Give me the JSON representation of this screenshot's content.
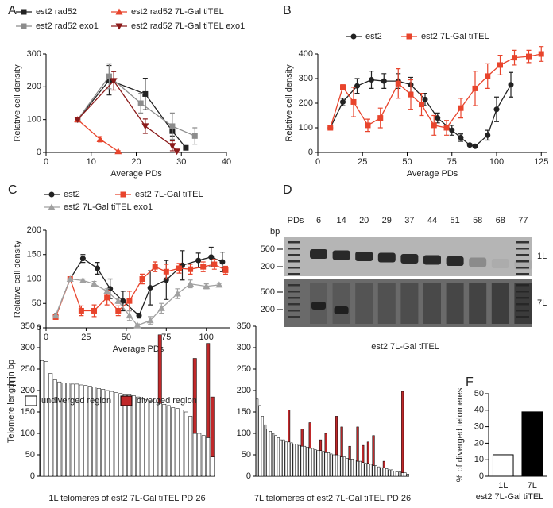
{
  "chart_data": [
    {
      "panel": "A",
      "type": "line",
      "xlabel": "Average PDs",
      "ylabel": "Relative cell density",
      "xlim": [
        0,
        40
      ],
      "xticks": [
        0,
        10,
        20,
        30,
        40
      ],
      "ylim": [
        0,
        300
      ],
      "yticks": [
        0,
        100,
        200,
        300
      ],
      "series": [
        {
          "name": "est2 rad52",
          "color": "#222222",
          "marker": "square",
          "x": [
            7,
            14,
            22,
            28,
            31
          ],
          "values": [
            100,
            220,
            178,
            65,
            14
          ],
          "errors": [
            0,
            45,
            48,
            15,
            3
          ]
        },
        {
          "name": "est2 rad52 exo1",
          "color": "#8c8c8c",
          "marker": "square",
          "x": [
            7,
            14,
            21,
            28,
            33
          ],
          "values": [
            100,
            232,
            150,
            80,
            50
          ],
          "errors": [
            0,
            38,
            30,
            40,
            25
          ]
        },
        {
          "name": "est2 rad52 7L-Gal tiTEL",
          "color": "#e8442c",
          "marker": "triangle",
          "x": [
            7,
            12,
            16
          ],
          "values": [
            100,
            40,
            3
          ],
          "errors": [
            0,
            8,
            2
          ]
        },
        {
          "name": "est2 rad52 7L-Gal tiTEL exo1",
          "color": "#8b1a1a",
          "marker": "triangle-down",
          "x": [
            7,
            15,
            22,
            28,
            29
          ],
          "values": [
            100,
            218,
            80,
            20,
            3
          ],
          "errors": [
            0,
            28,
            22,
            15,
            3
          ]
        }
      ]
    },
    {
      "panel": "B",
      "type": "line",
      "xlabel": "Average PDs",
      "ylabel": "Relative cell density",
      "xlim": [
        0,
        128
      ],
      "xticks": [
        0,
        25,
        50,
        75,
        100,
        125
      ],
      "ylim": [
        0,
        400
      ],
      "yticks": [
        0,
        100,
        200,
        300,
        400
      ],
      "series": [
        {
          "name": "est2",
          "color": "#222222",
          "marker": "circle",
          "x": [
            7,
            14,
            22,
            30,
            37,
            45,
            52,
            60,
            67,
            75,
            80,
            85,
            88,
            95,
            100,
            108
          ],
          "values": [
            100,
            205,
            270,
            295,
            290,
            290,
            275,
            215,
            140,
            90,
            60,
            30,
            25,
            70,
            175,
            275
          ],
          "errors": [
            0,
            15,
            30,
            35,
            30,
            30,
            30,
            25,
            20,
            20,
            15,
            5,
            5,
            20,
            50,
            50
          ]
        },
        {
          "name": "est2 7L-Gal tiTEL",
          "color": "#e8442c",
          "marker": "square",
          "x": [
            7,
            14,
            20,
            28,
            35,
            45,
            52,
            58,
            65,
            72,
            80,
            88,
            95,
            102,
            110,
            118,
            125
          ],
          "values": [
            100,
            265,
            205,
            110,
            140,
            280,
            235,
            195,
            110,
            100,
            180,
            260,
            310,
            355,
            385,
            390,
            400
          ],
          "errors": [
            0,
            10,
            60,
            25,
            40,
            60,
            60,
            45,
            40,
            30,
            40,
            70,
            50,
            40,
            30,
            25,
            30
          ]
        }
      ]
    },
    {
      "panel": "C",
      "type": "line",
      "xlabel": "Average PDs",
      "ylabel": "Relative cell density",
      "xlim": [
        0,
        115
      ],
      "xticks": [
        0,
        25,
        50,
        75,
        100
      ],
      "ylim": [
        0,
        200
      ],
      "yticks": [
        0,
        50,
        100,
        150,
        200
      ],
      "series": [
        {
          "name": "est2",
          "color": "#222222",
          "marker": "circle",
          "x": [
            6,
            15,
            23,
            32,
            40,
            48,
            58,
            65,
            75,
            85,
            95,
            103,
            110
          ],
          "values": [
            25,
            100,
            142,
            122,
            80,
            55,
            25,
            82,
            98,
            128,
            138,
            145,
            135
          ],
          "errors": [
            0,
            0,
            8,
            12,
            20,
            20,
            5,
            35,
            40,
            30,
            15,
            20,
            20
          ]
        },
        {
          "name": "est2 7L-Gal tiTEL",
          "color": "#e8442c",
          "marker": "square",
          "x": [
            6,
            15,
            22,
            30,
            38,
            45,
            52,
            60,
            68,
            75,
            83,
            90,
            98,
            105,
            112
          ],
          "values": [
            22,
            100,
            35,
            35,
            62,
            35,
            55,
            100,
            125,
            115,
            122,
            120,
            125,
            130,
            118
          ],
          "errors": [
            0,
            0,
            10,
            12,
            15,
            10,
            20,
            10,
            10,
            15,
            10,
            10,
            10,
            10,
            8
          ]
        },
        {
          "name": "est2 7L-Gal tiTEL exo1",
          "color": "#a0a0a0",
          "marker": "triangle",
          "x": [
            6,
            15,
            23,
            30,
            38,
            45,
            52,
            57,
            65,
            72,
            82,
            90,
            100,
            108
          ],
          "values": [
            25,
            100,
            97,
            90,
            75,
            55,
            25,
            5,
            15,
            40,
            70,
            90,
            85,
            88
          ],
          "errors": [
            0,
            0,
            3,
            5,
            5,
            5,
            10,
            3,
            8,
            10,
            10,
            8,
            5,
            3
          ]
        }
      ]
    },
    {
      "panel": "D",
      "type": "gel",
      "lane_label": "PDs",
      "lanes": [
        6,
        14,
        20,
        29,
        37,
        44,
        51,
        58,
        68,
        77
      ],
      "size_unit": "bp",
      "size_markers": [
        500,
        200
      ],
      "blots": [
        "1L",
        "7L"
      ],
      "caption": "est2 7L-Gal tiTEL"
    },
    {
      "panel": "E",
      "type": "stacked_bar",
      "ylabel": "Telomere length in bp",
      "xlabel": "1L telomeres of est2 7L-Gal tiTEL PD 26",
      "ylim": [
        0,
        350
      ],
      "yticks": [
        0,
        50,
        100,
        150,
        200,
        250,
        300,
        350
      ],
      "series": [
        {
          "name": "undiverged region",
          "color": "#ffffff",
          "values": [
            270,
            268,
            240,
            225,
            220,
            218,
            218,
            215,
            215,
            213,
            212,
            210,
            208,
            205,
            203,
            200,
            198,
            195,
            193,
            190,
            190,
            188,
            185,
            180,
            178,
            175,
            172,
            170,
            168,
            165,
            160,
            158,
            155,
            150,
            140,
            100,
            100,
            95,
            90,
            45
          ]
        },
        {
          "name": "diverged region",
          "color": "#c0282a",
          "values": [
            0,
            0,
            0,
            0,
            0,
            0,
            0,
            0,
            0,
            0,
            0,
            0,
            0,
            0,
            0,
            0,
            0,
            0,
            0,
            0,
            0,
            0,
            0,
            0,
            0,
            0,
            0,
            160,
            0,
            0,
            0,
            0,
            0,
            0,
            0,
            175,
            0,
            0,
            220,
            140
          ]
        }
      ]
    },
    {
      "type": "stacked_bar",
      "xlabel": "7L telomeres of est2 7L-Gal tiTEL PD 26",
      "ylim": [
        0,
        350
      ],
      "yticks": [
        0,
        50,
        100,
        150,
        200,
        250,
        300,
        350
      ],
      "series": [
        {
          "color": "#ffffff",
          "values": [
            180,
            165,
            140,
            120,
            110,
            105,
            100,
            95,
            90,
            85,
            85,
            80,
            80,
            78,
            75,
            75,
            72,
            70,
            70,
            68,
            65,
            65,
            62,
            60,
            60,
            58,
            55,
            55,
            52,
            50,
            50,
            48,
            45,
            45,
            42,
            40,
            40,
            38,
            35,
            35,
            32,
            30,
            30,
            28,
            25,
            25,
            22,
            20,
            20,
            18,
            15,
            15,
            12,
            10,
            10,
            8,
            8,
            5
          ]
        },
        {
          "color": "#c0282a",
          "values": [
            0,
            0,
            0,
            0,
            0,
            0,
            0,
            0,
            0,
            0,
            0,
            0,
            75,
            0,
            0,
            0,
            0,
            40,
            0,
            0,
            60,
            0,
            0,
            0,
            25,
            0,
            45,
            0,
            0,
            0,
            90,
            0,
            70,
            0,
            0,
            30,
            0,
            0,
            80,
            0,
            40,
            0,
            50,
            0,
            70,
            0,
            0,
            0,
            15,
            0,
            0,
            0,
            0,
            0,
            0,
            190,
            0,
            0
          ]
        }
      ]
    },
    {
      "panel": "F",
      "type": "bar",
      "ylabel": "% of diverged telomeres",
      "xlabel": "est2 7L-Gal tiTEL",
      "categories": [
        "1L",
        "7L"
      ],
      "values": [
        13,
        39
      ],
      "colors": [
        "#ffffff",
        "#000000"
      ],
      "ylim": [
        0,
        50
      ],
      "yticks": [
        0,
        10,
        20,
        30,
        40,
        50
      ]
    }
  ]
}
